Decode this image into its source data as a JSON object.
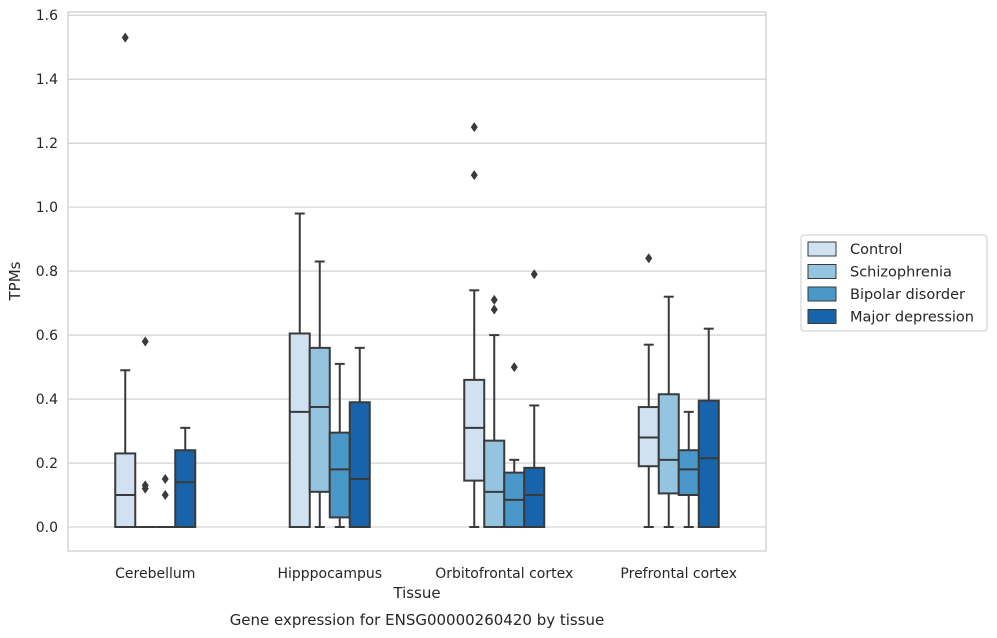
{
  "chart_data": {
    "type": "box",
    "title": "",
    "xlabel": "Tissue",
    "ylabel": "TPMs",
    "caption": "Gene expression for ENSG00000260420 by tissue",
    "ylim": [
      -0.075,
      1.61
    ],
    "yticks": [
      "0.0",
      "0.2",
      "0.4",
      "0.6",
      "0.8",
      "1.0",
      "1.2",
      "1.4",
      "1.6"
    ],
    "grid": true,
    "legend_position": "right",
    "categories": [
      "Cerebellum",
      "Hipppocampus",
      "Orbitofrontal cortex",
      "Prefrontal cortex"
    ],
    "series": [
      {
        "name": "Control",
        "color": "#d0e1f2",
        "boxes": [
          {
            "q1": 0.0,
            "median": 0.1,
            "q3": 0.23,
            "whisker_low": 0.0,
            "whisker_high": 0.49,
            "outliers": [
              1.53
            ]
          },
          {
            "q1": 0.0,
            "median": 0.36,
            "q3": 0.605,
            "whisker_low": 0.0,
            "whisker_high": 0.98,
            "outliers": []
          },
          {
            "q1": 0.145,
            "median": 0.31,
            "q3": 0.46,
            "whisker_low": 0.0,
            "whisker_high": 0.74,
            "outliers": [
              1.1,
              1.25
            ]
          },
          {
            "q1": 0.19,
            "median": 0.28,
            "q3": 0.375,
            "whisker_low": 0.0,
            "whisker_high": 0.57,
            "outliers": [
              0.84
            ]
          }
        ]
      },
      {
        "name": "Schizophrenia",
        "color": "#94c4df",
        "boxes": [
          {
            "q1": 0.0,
            "median": 0.0,
            "q3": 0.0,
            "whisker_low": 0.0,
            "whisker_high": 0.0,
            "outliers": [
              0.12,
              0.13,
              0.58
            ]
          },
          {
            "q1": 0.11,
            "median": 0.375,
            "q3": 0.56,
            "whisker_low": 0.0,
            "whisker_high": 0.83,
            "outliers": []
          },
          {
            "q1": 0.0,
            "median": 0.11,
            "q3": 0.27,
            "whisker_low": 0.0,
            "whisker_high": 0.6,
            "outliers": [
              0.68,
              0.71
            ]
          },
          {
            "q1": 0.105,
            "median": 0.21,
            "q3": 0.415,
            "whisker_low": 0.0,
            "whisker_high": 0.72,
            "outliers": []
          }
        ]
      },
      {
        "name": "Bipolar disorder",
        "color": "#4a98c9",
        "boxes": [
          {
            "q1": 0.0,
            "median": 0.0,
            "q3": 0.0,
            "whisker_low": 0.0,
            "whisker_high": 0.0,
            "outliers": [
              0.1,
              0.15
            ]
          },
          {
            "q1": 0.03,
            "median": 0.18,
            "q3": 0.295,
            "whisker_low": 0.0,
            "whisker_high": 0.51,
            "outliers": []
          },
          {
            "q1": 0.0,
            "median": 0.085,
            "q3": 0.17,
            "whisker_low": 0.0,
            "whisker_high": 0.21,
            "outliers": [
              0.5
            ]
          },
          {
            "q1": 0.1,
            "median": 0.18,
            "q3": 0.24,
            "whisker_low": 0.0,
            "whisker_high": 0.36,
            "outliers": []
          }
        ]
      },
      {
        "name": "Major depression",
        "color": "#1764ab",
        "boxes": [
          {
            "q1": 0.0,
            "median": 0.14,
            "q3": 0.24,
            "whisker_low": 0.0,
            "whisker_high": 0.31,
            "outliers": []
          },
          {
            "q1": 0.0,
            "median": 0.15,
            "q3": 0.39,
            "whisker_low": 0.0,
            "whisker_high": 0.56,
            "outliers": []
          },
          {
            "q1": 0.0,
            "median": 0.1,
            "q3": 0.185,
            "whisker_low": 0.0,
            "whisker_high": 0.38,
            "outliers": [
              0.79
            ]
          },
          {
            "q1": 0.0,
            "median": 0.215,
            "q3": 0.395,
            "whisker_low": 0.0,
            "whisker_high": 0.62,
            "outliers": []
          }
        ]
      }
    ]
  },
  "colors": {
    "line": "#3a3a3a",
    "grid": "#cccccc",
    "frame": "#cccccc"
  }
}
